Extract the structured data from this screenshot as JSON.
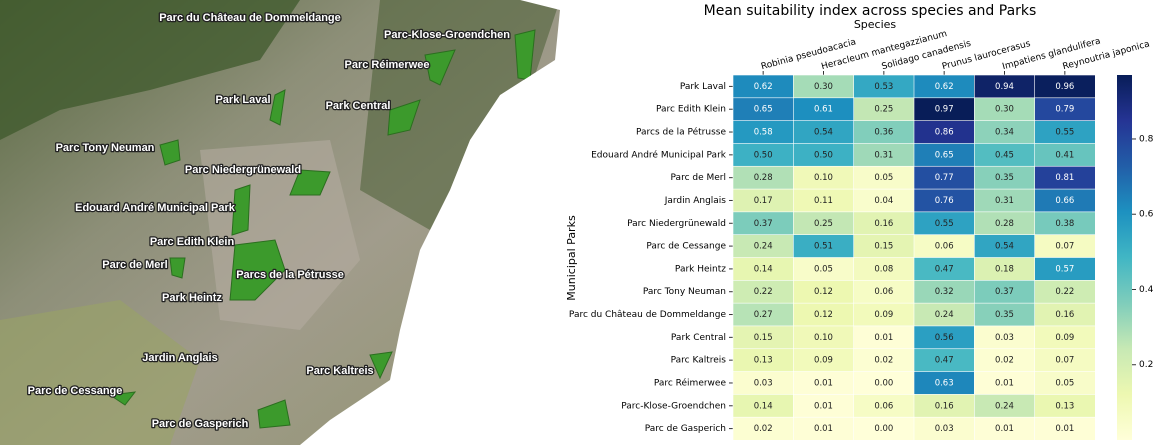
{
  "map": {
    "labels": [
      "Parc du Château de Dommeldange",
      "Parc-Klose-Groendchen",
      "Parc Réimerwee",
      "Park Laval",
      "Park Central",
      "Parc Tony Neuman",
      "Parc Niedergrünewald",
      "Edouard André Municipal Park",
      "Parc Edith Klein",
      "Parc de Merl",
      "Parcs de la Pétrusse",
      "Park Heintz",
      "Jardin Anglais",
      "Parc Kaltreis",
      "Parc de Cessange",
      "Parc de Gasperich"
    ]
  },
  "chart_data": {
    "type": "heatmap",
    "title": "Mean suitability index across species and Parks",
    "x_label": "Species",
    "y_label": "Municipal Parks",
    "x": [
      "Robinia pseudoacacia",
      "Heracleum mantegazzianum",
      "Solidago canadensis",
      "Prunus laurocerasus",
      "Impatiens glandulifera",
      "Reynoutria japonica"
    ],
    "y": [
      "Park Laval",
      "Parc Edith Klein",
      "Parcs de la Pétrusse",
      "Edouard André Municipal Park",
      "Parc de Merl",
      "Jardin Anglais",
      "Parc Niedergrünewald",
      "Parc de Cessange",
      "Park Heintz",
      "Parc Tony Neuman",
      "Parc du Château de Dommeldange",
      "Park Central",
      "Parc Kaltreis",
      "Parc Réimerwee",
      "Parc-Klose-Groendchen",
      "Parc de Gasperich"
    ],
    "values": [
      [
        0.62,
        0.3,
        0.53,
        0.62,
        0.94,
        0.96
      ],
      [
        0.65,
        0.61,
        0.25,
        0.97,
        0.3,
        0.79
      ],
      [
        0.58,
        0.54,
        0.36,
        0.86,
        0.34,
        0.55
      ],
      [
        0.5,
        0.5,
        0.31,
        0.65,
        0.45,
        0.41
      ],
      [
        0.28,
        0.1,
        0.05,
        0.77,
        0.35,
        0.81
      ],
      [
        0.17,
        0.11,
        0.04,
        0.76,
        0.31,
        0.66
      ],
      [
        0.37,
        0.25,
        0.16,
        0.55,
        0.28,
        0.38
      ],
      [
        0.24,
        0.51,
        0.15,
        0.06,
        0.54,
        0.07
      ],
      [
        0.14,
        0.05,
        0.08,
        0.47,
        0.18,
        0.57
      ],
      [
        0.22,
        0.12,
        0.06,
        0.32,
        0.37,
        0.22
      ],
      [
        0.27,
        0.12,
        0.09,
        0.24,
        0.35,
        0.16
      ],
      [
        0.15,
        0.1,
        0.01,
        0.56,
        0.03,
        0.09
      ],
      [
        0.13,
        0.09,
        0.02,
        0.47,
        0.02,
        0.07
      ],
      [
        0.03,
        0.01,
        0.0,
        0.63,
        0.01,
        0.05
      ],
      [
        0.14,
        0.01,
        0.06,
        0.16,
        0.24,
        0.13
      ],
      [
        0.02,
        0.01,
        0.0,
        0.03,
        0.01,
        0.01
      ]
    ],
    "value_labels": [
      [
        "0.62",
        "0.30",
        "0.53",
        "0.62",
        "0.94",
        "0.96"
      ],
      [
        "0.65",
        "0.61",
        "0.25",
        "0.97",
        "0.30",
        "0.79"
      ],
      [
        "0.58",
        "0.54",
        "0.36",
        "0.86",
        "0.34",
        "0.55"
      ],
      [
        "0.50",
        "0.50",
        "0.31",
        "0.65",
        "0.45",
        "0.41"
      ],
      [
        "0.28",
        "0.10",
        "0.05",
        "0.77",
        "0.35",
        "0.81"
      ],
      [
        "0.17",
        "0.11",
        "0.04",
        "0.76",
        "0.31",
        "0.66"
      ],
      [
        "0.37",
        "0.25",
        "0.16",
        "0.55",
        "0.28",
        "0.38"
      ],
      [
        "0.24",
        "0.51",
        "0.15",
        "0.06",
        "0.54",
        "0.07"
      ],
      [
        "0.14",
        "0.05",
        "0.08",
        "0.47",
        "0.18",
        "0.57"
      ],
      [
        "0.22",
        "0.12",
        "0.06",
        "0.32",
        "0.37",
        "0.22"
      ],
      [
        "0.27",
        "0.12",
        "0.09",
        "0.24",
        "0.35",
        "0.16"
      ],
      [
        "0.15",
        "0.10",
        "0.01",
        "0.56",
        "0.03",
        "0.09"
      ],
      [
        "0.13",
        "0.09",
        "0.02",
        "0.47",
        "0.02",
        "0.07"
      ],
      [
        "0.03",
        "0.01",
        "0.00",
        "0.63",
        "0.01",
        "0.05"
      ],
      [
        "0.14",
        "0.01",
        "0.06",
        "0.16",
        "0.24",
        "0.13"
      ],
      [
        "0.02",
        "0.01",
        "0.00",
        "0.03",
        "0.01",
        "0.01"
      ]
    ],
    "colormap": "YlGnBu",
    "vlim": [
      0,
      0.97
    ],
    "cticks": [
      0.2,
      0.4,
      0.6,
      0.8
    ]
  }
}
